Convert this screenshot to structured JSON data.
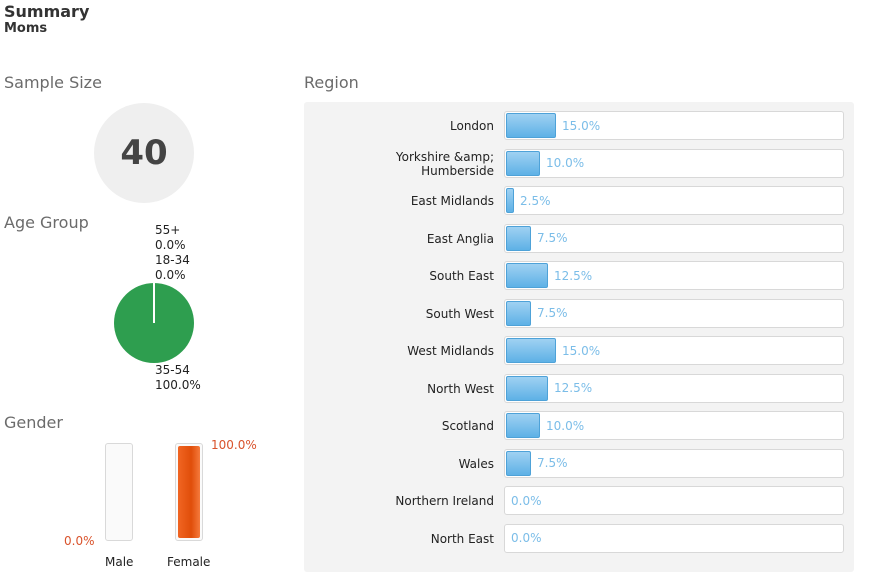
{
  "header": {
    "title": "Summary",
    "subtitle": "Moms"
  },
  "sample_size": {
    "label": "Sample Size",
    "value": "40"
  },
  "age_group": {
    "label": "Age Group",
    "slices": [
      {
        "name": "55+",
        "value": 0.0,
        "pct_label": "0.0%"
      },
      {
        "name": "18-34",
        "value": 0.0,
        "pct_label": "0.0%"
      },
      {
        "name": "35-54",
        "value": 100.0,
        "pct_label": "100.0%"
      }
    ],
    "colors": {
      "primary": "#2e9e4f"
    }
  },
  "chart_data": [
    {
      "type": "pie",
      "title": "Age Group",
      "categories": [
        "55+",
        "18-34",
        "35-54"
      ],
      "values": [
        0.0,
        0.0,
        100.0
      ]
    },
    {
      "type": "bar",
      "title": "Gender",
      "categories": [
        "Male",
        "Female"
      ],
      "values": [
        0.0,
        100.0
      ],
      "value_labels": [
        "0.0%",
        "100.0%"
      ],
      "ylim": [
        0,
        100
      ],
      "colors": {
        "fill": "#f16522",
        "label": "#d9532c"
      }
    },
    {
      "type": "bar",
      "orientation": "horizontal",
      "title": "Region",
      "categories": [
        "London",
        "Yorkshire &amp; Humberside",
        "East Midlands",
        "East Anglia",
        "South East",
        "South West",
        "West Midlands",
        "North West",
        "Scotland",
        "Wales",
        "Northern Ireland",
        "North East"
      ],
      "values": [
        15.0,
        10.0,
        2.5,
        7.5,
        12.5,
        7.5,
        15.0,
        12.5,
        10.0,
        7.5,
        0.0,
        0.0
      ],
      "value_labels": [
        "15.0%",
        "10.0%",
        "2.5%",
        "7.5%",
        "12.5%",
        "7.5%",
        "15.0%",
        "12.5%",
        "10.0%",
        "7.5%",
        "0.0%",
        "0.0%"
      ],
      "xlim": [
        0,
        100
      ],
      "colors": {
        "fill": "#5eb1e6",
        "label": "#7bbde8"
      }
    }
  ],
  "gender": {
    "label": "Gender",
    "items": [
      {
        "name": "Male",
        "value": 0.0,
        "pct_label": "0.0%"
      },
      {
        "name": "Female",
        "value": 100.0,
        "pct_label": "100.0%"
      }
    ]
  },
  "region": {
    "label": "Region",
    "rows": [
      {
        "name": "London",
        "value": 15.0,
        "pct_label": "15.0%"
      },
      {
        "name": "Yorkshire &amp; Humberside",
        "line1": "Yorkshire &amp;",
        "line2": "Humberside",
        "value": 10.0,
        "pct_label": "10.0%"
      },
      {
        "name": "East Midlands",
        "value": 2.5,
        "pct_label": "2.5%"
      },
      {
        "name": "East Anglia",
        "value": 7.5,
        "pct_label": "7.5%"
      },
      {
        "name": "South East",
        "value": 12.5,
        "pct_label": "12.5%"
      },
      {
        "name": "South West",
        "value": 7.5,
        "pct_label": "7.5%"
      },
      {
        "name": "West Midlands",
        "value": 15.0,
        "pct_label": "15.0%"
      },
      {
        "name": "North West",
        "value": 12.5,
        "pct_label": "12.5%"
      },
      {
        "name": "Scotland",
        "value": 10.0,
        "pct_label": "10.0%"
      },
      {
        "name": "Wales",
        "value": 7.5,
        "pct_label": "7.5%"
      },
      {
        "name": "Northern Ireland",
        "value": 0.0,
        "pct_label": "0.0%"
      },
      {
        "name": "North East",
        "value": 0.0,
        "pct_label": "0.0%"
      }
    ]
  }
}
